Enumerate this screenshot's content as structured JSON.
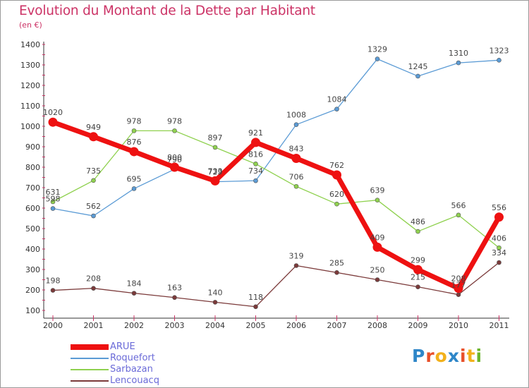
{
  "title": "Evolution du Montant de la Dette par Habitant",
  "subtitle": "(en €)",
  "logo": {
    "text": "Proxiti",
    "letters": [
      "P",
      "r",
      "o",
      "x",
      "i",
      "t",
      "i"
    ],
    "colors": [
      "#2e86c8",
      "#e8502a",
      "#f2b11b",
      "#2e86c8",
      "#e8502a",
      "#f2b11b",
      "#6bb52d"
    ]
  },
  "chart_data": {
    "type": "line",
    "x": [
      "2000",
      "2001",
      "2002",
      "2003",
      "2004",
      "2005",
      "2006",
      "2007",
      "2008",
      "2009",
      "2010",
      "2011"
    ],
    "ylim": [
      100,
      1400
    ],
    "yticks": [
      "100",
      "200",
      "300",
      "400",
      "500",
      "600",
      "700",
      "800",
      "900",
      "1000",
      "1100",
      "1200",
      "1300",
      "1400"
    ],
    "grid": false,
    "legend_position": "bottom-left",
    "series": [
      {
        "name": "Roquefort",
        "color": "#5b9bd5",
        "values": [
          598,
          562,
          695,
          790,
          729,
          734,
          1008,
          1084,
          1329,
          1245,
          1310,
          1323
        ],
        "labels": [
          "598",
          "562",
          "695",
          "790",
          "729",
          "734",
          "1008",
          "1084",
          "1329",
          "1245",
          "1310",
          "1323"
        ]
      },
      {
        "name": "Sarbazan",
        "color": "#8fd14f",
        "values": [
          631,
          735,
          978,
          978,
          897,
          816,
          706,
          620,
          639,
          486,
          566,
          406
        ],
        "labels": [
          "631",
          "735",
          "978",
          "978",
          "897",
          "816",
          "706",
          "620",
          "639",
          "486",
          "566",
          "406"
        ]
      },
      {
        "name": "Lencouacq",
        "color": "#7b3a3a",
        "values": [
          198,
          208,
          184,
          163,
          140,
          118,
          319,
          285,
          250,
          215,
          177,
          334
        ],
        "labels": [
          "198",
          "208",
          "184",
          "163",
          "140",
          "118",
          "319",
          "285",
          "250",
          "215",
          "177",
          "334"
        ]
      },
      {
        "name": "ARUE",
        "color": "#ee1111",
        "values": [
          1020,
          949,
          876,
          800,
          733,
          921,
          843,
          762,
          409,
          299,
          208,
          556
        ],
        "labels": [
          "1020",
          "949",
          "876",
          "800",
          "733",
          "921",
          "843",
          "762",
          "409",
          "299",
          "208",
          "556"
        ]
      }
    ]
  }
}
